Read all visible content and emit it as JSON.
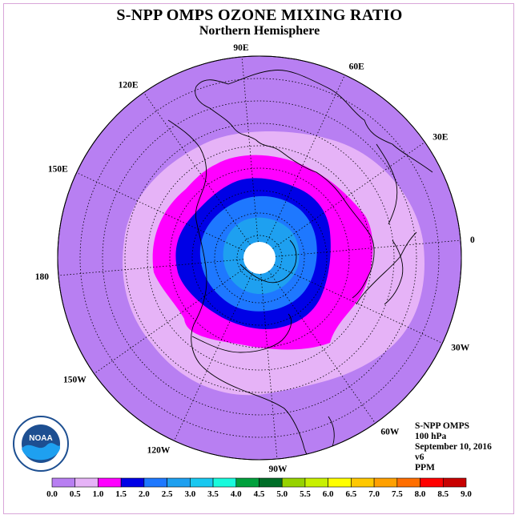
{
  "title": "S-NPP OMPS OZONE MIXING RATIO",
  "subtitle": "Northern Hemisphere",
  "info": {
    "instrument": "S-NPP OMPS",
    "level": "100 hPa",
    "date": "September 10, 2016",
    "version": "v6",
    "units": "PPM"
  },
  "logo": {
    "text": "NOAA"
  },
  "longitude_labels": [
    {
      "text": "90E",
      "deg": 90
    },
    {
      "text": "60E",
      "deg": 60
    },
    {
      "text": "30E",
      "deg": 30
    },
    {
      "text": "0",
      "deg": 0
    },
    {
      "text": "30W",
      "deg": -30
    },
    {
      "text": "60W",
      "deg": -60
    },
    {
      "text": "90W",
      "deg": -90
    },
    {
      "text": "120W",
      "deg": -120
    },
    {
      "text": "150W",
      "deg": -150
    },
    {
      "text": "180",
      "deg": 180
    },
    {
      "text": "150E",
      "deg": 150
    },
    {
      "text": "120E",
      "deg": 120
    }
  ],
  "colorbar": {
    "ticks": [
      "0.0",
      "0.5",
      "1.0",
      "1.5",
      "2.0",
      "2.5",
      "3.0",
      "3.5",
      "4.0",
      "4.5",
      "5.0",
      "5.5",
      "6.0",
      "6.5",
      "7.0",
      "7.5",
      "8.0",
      "8.5",
      "9.0"
    ],
    "colors": [
      "#b87ff2",
      "#e6b3f7",
      "#ff00ff",
      "#0000e6",
      "#1e78ff",
      "#1ea0f0",
      "#19c8f0",
      "#19fadc",
      "#00a03c",
      "#006e28",
      "#96d200",
      "#c8f000",
      "#ffff00",
      "#ffc800",
      "#ffa000",
      "#ff6e00",
      "#ff0000",
      "#c80000",
      "#8c5a3c"
    ]
  },
  "colors": {
    "band_0_0_5": "#b87ff2",
    "band_0_5_1_0": "#e6b3f7",
    "band_1_0_1_5": "#ff00ff",
    "band_1_5_2_0": "#0000e6",
    "band_2_0_2_5": "#1e78ff",
    "band_2_5_3_0": "#1ea0f0",
    "no_data": "#ffffff"
  }
}
